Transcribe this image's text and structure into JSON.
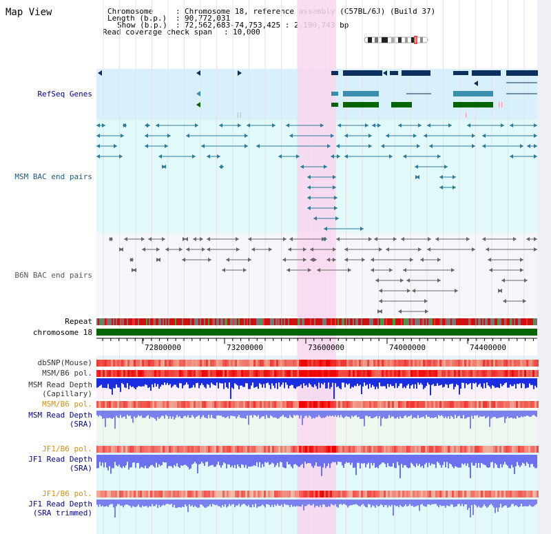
{
  "page_title": "Map View",
  "info": {
    "chromosome_key": "Chromosome",
    "chromosome_val": "Chromosome 18, reference assembly (C57BL/6J) (Build 37)",
    "length_key": "Length (b.p.)",
    "length_val": "90,772,031",
    "show_key": "Show (b.p.)",
    "show_val": "72,562,683-74,753,425 : 2,190,743 bp",
    "span_key": "Read coverage check span",
    "span_val": "10,000"
  },
  "tracks": {
    "refseq": "RefSeq Genes",
    "msm_bac": "MSM BAC end pairs",
    "b6n_bac": "B6N BAC end pairs",
    "repeat": "Repeat",
    "chromosome": "chromosome 18",
    "dbsnp": "dbSNP(Mouse)",
    "msm_b6_pol_1": "MSM/B6 pol.",
    "msm_depth_cap_1": "MSM Read Depth",
    "msm_depth_cap_2": "(Capillary)",
    "msm_b6_pol_2": "MSM/B6 pol.",
    "msm_depth_sra_1": "MSM Read Depth",
    "msm_depth_sra_2": "(SRA)",
    "jf1_b6_pol_1": "JF1/B6 pol.",
    "jf1_depth_sra_1": "JF1 Read Depth",
    "jf1_depth_sra_2": "(SRA)",
    "jf1_b6_pol_2": "JF1/B6 pol.",
    "jf1_depth_trim_1": "JF1 Read Depth",
    "jf1_depth_trim_2": "(SRA trimmed)"
  },
  "axis": {
    "ticks": [
      "72800000",
      "73200000",
      "73600000",
      "74000000",
      "74400000"
    ]
  },
  "colors": {
    "refseq_label": "#00008b",
    "msm_label": "#1a5a80",
    "b6n_label": "#555555",
    "pol_label": "#d4900a",
    "depth_label": "#00008b",
    "highlight": "#f9d7ef",
    "refseq_bg": "#d8f0fb",
    "msm_bg": "#e2f9f9",
    "b6n_bg": "#f4f6fa",
    "gene_navy": "#0b3060",
    "gene_teal": "#3a8fb0",
    "gene_green": "#006400",
    "chromosome_bar": "#006400"
  }
}
